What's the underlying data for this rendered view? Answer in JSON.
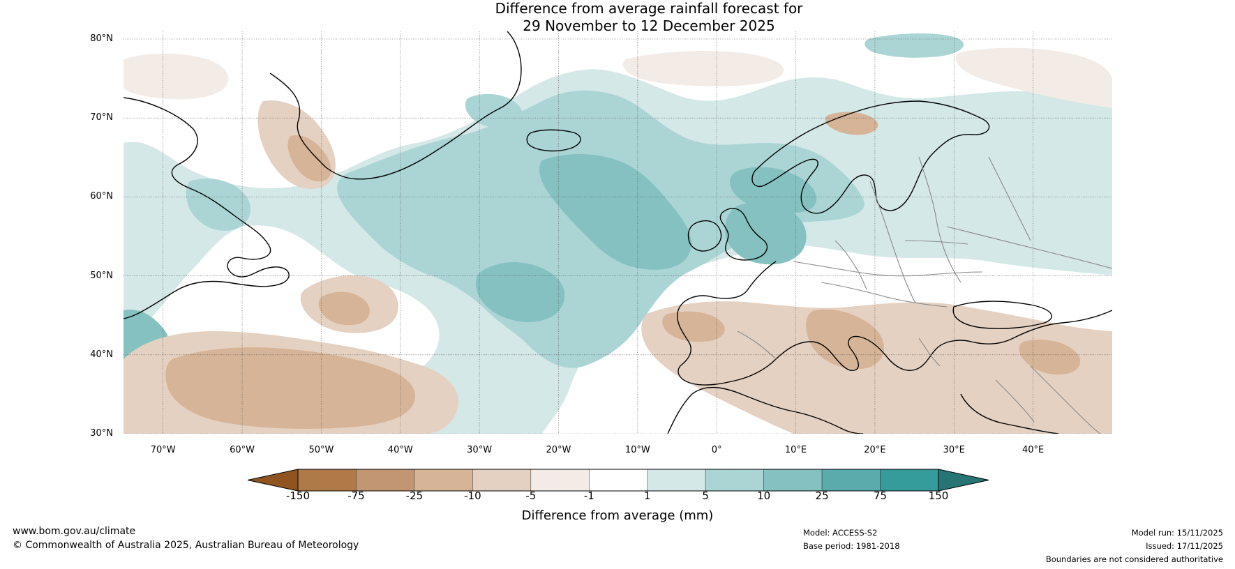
{
  "title": {
    "line1": "Difference from average rainfall forecast for",
    "line2": "29 November to 12 December 2025"
  },
  "map": {
    "region": "North Atlantic and Europe",
    "lat_labels": [
      "80°N",
      "70°N",
      "60°N",
      "50°N",
      "40°N",
      "30°N"
    ],
    "lon_labels": [
      "70°W",
      "60°W",
      "50°W",
      "40°W",
      "30°W",
      "20°W",
      "10°W",
      "0°",
      "10°E",
      "20°E",
      "30°E",
      "40°E"
    ],
    "lat_values": [
      80,
      70,
      60,
      50,
      40,
      30
    ],
    "lon_values": [
      -70,
      -60,
      -50,
      -40,
      -30,
      -20,
      -10,
      0,
      10,
      20,
      30,
      40
    ],
    "lon_range": [
      -75,
      50
    ],
    "lat_range": [
      30,
      81
    ]
  },
  "colorbar": {
    "title": "Difference from average (mm)",
    "tick_labels": [
      "-150",
      "-75",
      "-25",
      "-10",
      "-5",
      "-1",
      "1",
      "5",
      "10",
      "25",
      "75",
      "150"
    ],
    "colors": [
      "#a5632c",
      "#b07a48",
      "#c29672",
      "#d5b497",
      "#e5d1c2",
      "#f3ebe6",
      "#ffffff",
      "#d4e8e7",
      "#abd5d5",
      "#85c1c1",
      "#5aabab",
      "#359b9b",
      "#2d7b7b"
    ],
    "under_color": "#8f5420",
    "over_color": "#267474"
  },
  "footer": {
    "website": "www.bom.gov.au/climate",
    "copyright": "© Commonwealth of Australia 2025, Australian Bureau of Meteorology",
    "model": "Model: ACCESS-S2",
    "base_period": "Base period: 1981-2018",
    "model_run": "Model run: 15/11/2025",
    "issued": "Issued: 17/11/2025",
    "disclaimer": "Boundaries are not considered authoritative"
  }
}
